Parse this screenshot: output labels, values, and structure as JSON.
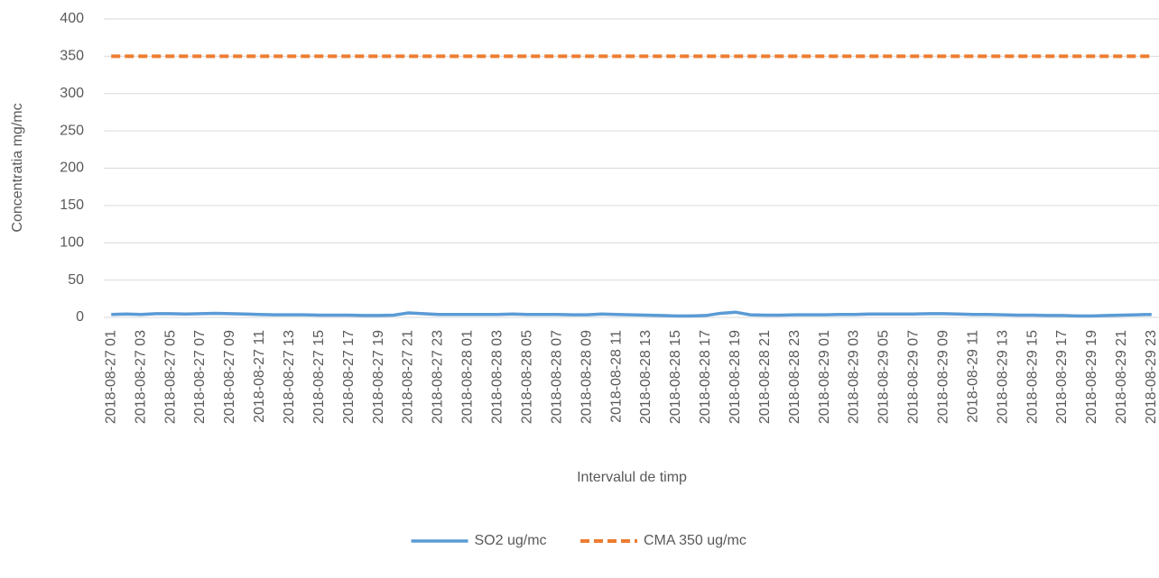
{
  "chart_data": {
    "type": "line",
    "y_label": "Concentratia mg/mc",
    "x_label": "Intervalul de timp",
    "categories": [
      "2018-08-27 01",
      null,
      "2018-08-27 03",
      null,
      "2018-08-27 05",
      null,
      "2018-08-27 07",
      null,
      "2018-08-27 09",
      null,
      "2018-08-27 11",
      null,
      "2018-08-27 13",
      null,
      "2018-08-27 15",
      null,
      "2018-08-27 17",
      null,
      "2018-08-27 19",
      null,
      "2018-08-27 21",
      null,
      "2018-08-27 23",
      null,
      "2018-08-28 01",
      null,
      "2018-08-28 03",
      null,
      "2018-08-28 05",
      null,
      "2018-08-28 07",
      null,
      "2018-08-28 09",
      null,
      "2018-08-28 11",
      null,
      "2018-08-28 13",
      null,
      "2018-08-28 15",
      null,
      "2018-08-28 17",
      null,
      "2018-08-28 19",
      null,
      "2018-08-28 21",
      null,
      "2018-08-28 23",
      null,
      "2018-08-29 01",
      null,
      "2018-08-29 03",
      null,
      "2018-08-29 05",
      null,
      "2018-08-29 07",
      null,
      "2018-08-29 09",
      null,
      "2018-08-29 11",
      null,
      "2018-08-29 13",
      null,
      "2018-08-29 15",
      null,
      "2018-08-29 17",
      null,
      "2018-08-29 19",
      null,
      "2018-08-29 21",
      null,
      "2018-08-29 23"
    ],
    "series": [
      {
        "name": "SO2 ug/mc",
        "color": "#5b9bd5",
        "dashed": false,
        "values": [
          4,
          4.5,
          4,
          5,
          5,
          4.5,
          5,
          5.5,
          5,
          4.5,
          4,
          3.5,
          3.5,
          3.5,
          3,
          3,
          3,
          2.5,
          2.5,
          3,
          6,
          5,
          4,
          4,
          4,
          4,
          4,
          4.5,
          4,
          4,
          4,
          3.5,
          3.5,
          4.5,
          4,
          3.5,
          3,
          2.5,
          2,
          2,
          2.5,
          5.5,
          7,
          3.5,
          3,
          3,
          3.5,
          3.5,
          3.5,
          4,
          4,
          4.5,
          4.5,
          4.5,
          4.5,
          5,
          5,
          4.5,
          4,
          4,
          3.5,
          3,
          3,
          2.5,
          2.5,
          2,
          2,
          2.5,
          3,
          3.5,
          4
        ]
      },
      {
        "name": "CMA 350 ug/mc",
        "color": "#ed7d31",
        "dashed": true,
        "values": [
          350,
          350,
          350,
          350,
          350,
          350,
          350,
          350,
          350,
          350,
          350,
          350,
          350,
          350,
          350,
          350,
          350,
          350,
          350,
          350,
          350,
          350,
          350,
          350,
          350,
          350,
          350,
          350,
          350,
          350,
          350,
          350,
          350,
          350,
          350,
          350,
          350,
          350,
          350,
          350,
          350,
          350,
          350,
          350,
          350,
          350,
          350,
          350,
          350,
          350,
          350,
          350,
          350,
          350,
          350,
          350,
          350,
          350,
          350,
          350,
          350,
          350,
          350,
          350,
          350,
          350,
          350,
          350,
          350,
          350,
          350
        ]
      }
    ],
    "ylim": [
      0,
      400
    ],
    "yticks": [
      0,
      50,
      100,
      150,
      200,
      250,
      300,
      350,
      400
    ],
    "grid": true,
    "legend": "bottom"
  }
}
